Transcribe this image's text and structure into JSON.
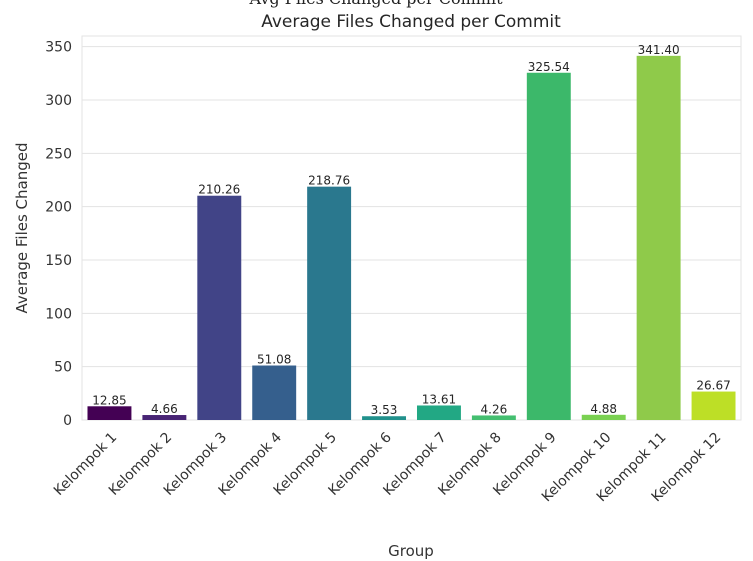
{
  "clipped_caption": "Avg Files Changed per Commit",
  "chart_data": {
    "type": "bar",
    "title": "Average Files Changed per Commit",
    "xlabel": "Group",
    "ylabel": "Average Files Changed",
    "ylim": [
      0,
      360
    ],
    "yticks": [
      0,
      50,
      100,
      150,
      200,
      250,
      300,
      350
    ],
    "grid": true,
    "categories": [
      "Kelompok 1",
      "Kelompok 2",
      "Kelompok 3",
      "Kelompok 4",
      "Kelompok 5",
      "Kelompok 6",
      "Kelompok 7",
      "Kelompok 8",
      "Kelompok 9",
      "Kelompok 10",
      "Kelompok 11",
      "Kelompok 12"
    ],
    "values": [
      12.85,
      4.66,
      210.26,
      51.08,
      218.76,
      3.53,
      13.61,
      4.26,
      325.54,
      4.88,
      341.4,
      26.67
    ],
    "value_labels": [
      "12.85",
      "4.66",
      "210.26",
      "51.08",
      "218.76",
      "3.53",
      "13.61",
      "4.26",
      "325.54",
      "4.88",
      "341.40",
      "26.67"
    ],
    "colors": [
      "#440154",
      "#482475",
      "#414487",
      "#355f8d",
      "#2a788e",
      "#21918c",
      "#22a884",
      "#44bf70",
      "#3cb86a",
      "#7ad151",
      "#8fca4a",
      "#bddf26"
    ]
  }
}
